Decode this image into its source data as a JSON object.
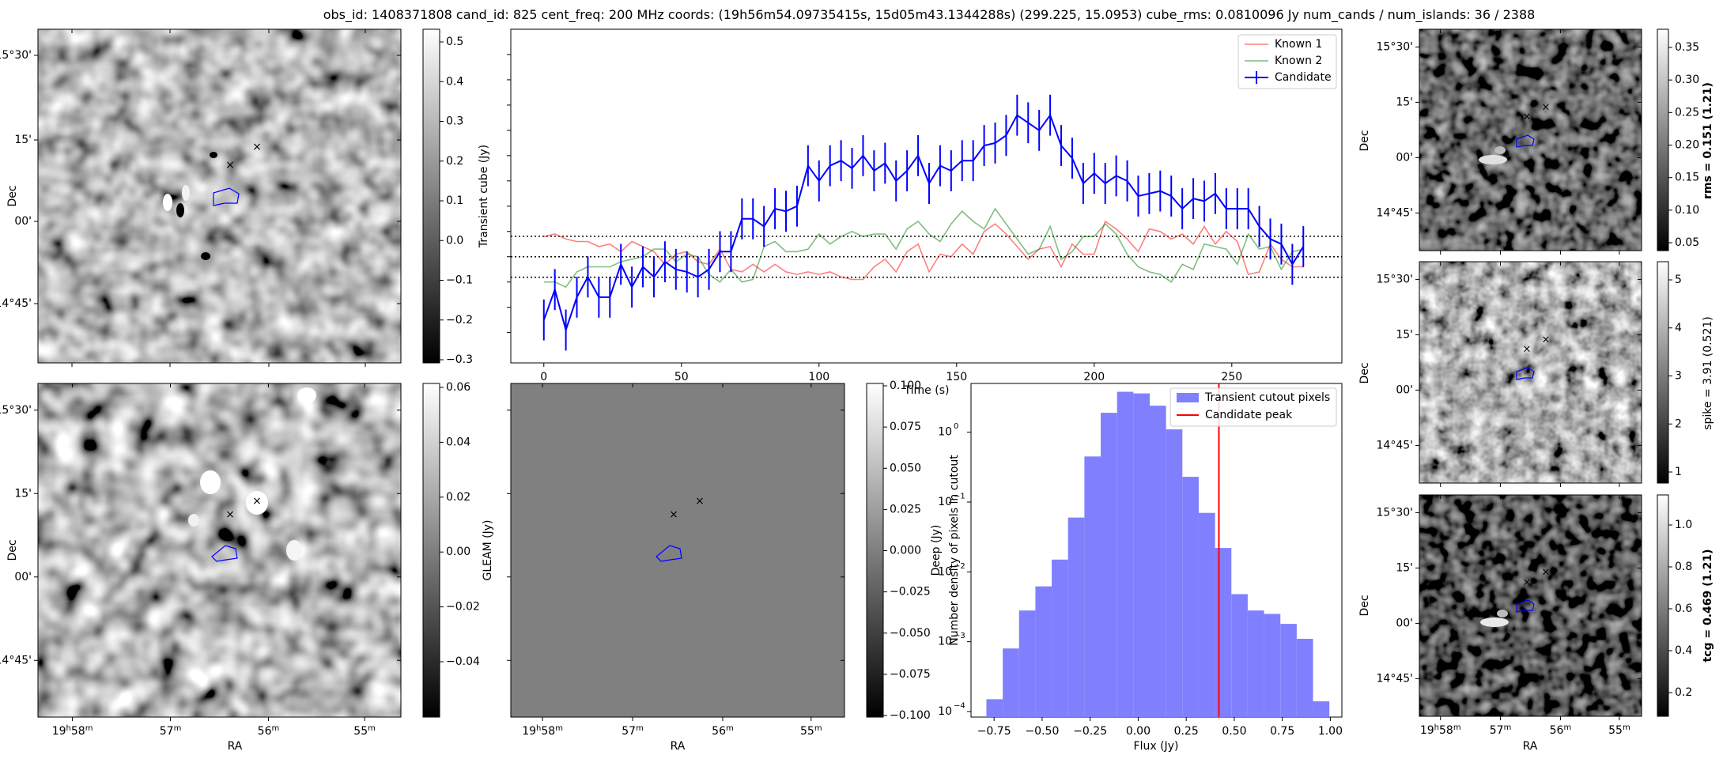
{
  "title": "obs_id: 1408371808 cand_id: 825 cent_freq: 200 MHz coords: (19h56m54.09735415s, 15d05m43.1344288s) (299.225, 15.0953) cube_rms: 0.0810096 Jy num_cands / num_islands: 36 / 2388",
  "sky_axes": {
    "dec_ticks": [
      "15°30'",
      "15'",
      "00'",
      "14°45'"
    ],
    "ra_ticks": [
      {
        "h": "19",
        "m": "58",
        "s": "m"
      },
      {
        "h": "",
        "m": "57",
        "s": "m"
      },
      {
        "h": "",
        "m": "56",
        "s": "m"
      },
      {
        "h": "",
        "m": "55",
        "s": "m"
      }
    ],
    "xlabel": "RA",
    "ylabel": "Dec"
  },
  "panels": {
    "transient": {
      "cbar_label": "Transient cube (Jy)",
      "cbar_ticks": [
        "0.5",
        "0.4",
        "0.3",
        "0.2",
        "0.1",
        "0.0",
        "−0.1",
        "−0.2",
        "−0.3"
      ],
      "colors": {
        "marker_green": "#008000",
        "marker_red": "#ff0000",
        "contour": "#0000ff"
      }
    },
    "deep": {
      "cbar_label": "Deep (Jy)",
      "cbar_ticks": [
        "0.06",
        "0.04",
        "0.02",
        "0.00",
        "−0.02",
        "−0.04"
      ]
    },
    "gleam": {
      "cbar_label": "GLEAM (Jy)",
      "cbar_ticks": [
        "0.100",
        "0.075",
        "0.050",
        "0.025",
        "0.000",
        "−0.025",
        "−0.050",
        "−0.075",
        "−0.100"
      ],
      "fill_color": "#808080"
    },
    "rms": {
      "cbar_label": "rms = 0.151 (1.21)",
      "cbar_ticks": [
        "0.35",
        "0.30",
        "0.25",
        "0.20",
        "0.15",
        "0.10",
        "0.05"
      ]
    },
    "spike": {
      "cbar_label": "spike = 3.91 (0.521)",
      "cbar_ticks": [
        "5",
        "4",
        "3",
        "2",
        "1"
      ]
    },
    "tcg": {
      "cbar_label": "tcg = 0.469 (1.21)",
      "cbar_ticks": [
        "1.0",
        "0.8",
        "0.6",
        "0.4",
        "0.2"
      ]
    }
  },
  "chart_data": [
    {
      "type": "line",
      "name": "lightcurve",
      "xlabel": "Time (s)",
      "ylabel": "",
      "xlim": [
        -12,
        290
      ],
      "ylim": [
        -0.42,
        0.9
      ],
      "x_ticks": [
        0,
        50,
        100,
        150,
        200,
        250
      ],
      "x_tick_labels": [
        "0",
        "50",
        "100",
        "150",
        "200",
        "250"
      ],
      "hlines": [
        -0.081,
        0.0,
        0.081
      ],
      "legend": [
        "Known 1",
        "Known 2",
        "Candidate"
      ],
      "legend_position": "top-right",
      "series": [
        {
          "name": "Known 1",
          "color": "#ff0000",
          "x": [
            0,
            4,
            8,
            12,
            16,
            20,
            24,
            28,
            32,
            36,
            40,
            44,
            48,
            52,
            56,
            60,
            64,
            68,
            72,
            76,
            80,
            84,
            88,
            92,
            96,
            100,
            104,
            108,
            112,
            116,
            120,
            124,
            128,
            132,
            136,
            140,
            144,
            148,
            152,
            156,
            160,
            164,
            168,
            172,
            176,
            180,
            184,
            188,
            192,
            196,
            200,
            204,
            208,
            212,
            216,
            220,
            224,
            228,
            232,
            236,
            240,
            244,
            248,
            252,
            256,
            260,
            264,
            268,
            272,
            276
          ],
          "y": [
            0.08,
            0.09,
            0.07,
            0.06,
            0.06,
            0.04,
            0.05,
            0.02,
            0.06,
            0.04,
            0.02,
            -0.03,
            0.01,
            0.02,
            -0.02,
            -0.03,
            0.03,
            -0.05,
            -0.06,
            -0.03,
            -0.06,
            -0.03,
            -0.06,
            -0.07,
            -0.06,
            -0.07,
            -0.06,
            -0.08,
            -0.09,
            -0.09,
            -0.04,
            -0.01,
            -0.06,
            0.02,
            0.05,
            -0.06,
            0.01,
            0.0,
            0.05,
            0.01,
            0.1,
            0.13,
            0.09,
            0.04,
            -0.01,
            0.03,
            0.04,
            -0.04,
            0.05,
            0.01,
            0.01,
            0.14,
            0.11,
            0.07,
            0.02,
            0.11,
            0.1,
            0.07,
            0.09,
            0.05,
            0.12,
            0.05,
            0.1,
            0.06,
            -0.07,
            -0.06,
            0.05,
            -0.01,
            -0.04,
            -0.04
          ]
        },
        {
          "name": "Known 2",
          "color": "#008000",
          "x": [
            0,
            4,
            8,
            12,
            16,
            20,
            24,
            28,
            32,
            36,
            40,
            44,
            48,
            52,
            56,
            60,
            64,
            68,
            72,
            76,
            80,
            84,
            88,
            92,
            96,
            100,
            104,
            108,
            112,
            116,
            120,
            124,
            128,
            132,
            136,
            140,
            144,
            148,
            152,
            156,
            160,
            164,
            168,
            172,
            176,
            180,
            184,
            188,
            192,
            196,
            200,
            204,
            208,
            212,
            216,
            220,
            224,
            228,
            232,
            236,
            240,
            244,
            248,
            252,
            256,
            260,
            264,
            268,
            272,
            276
          ],
          "y": [
            -0.1,
            -0.1,
            -0.12,
            -0.06,
            -0.04,
            -0.04,
            -0.04,
            -0.02,
            -0.01,
            0.0,
            0.03,
            0.03,
            -0.02,
            0.01,
            0.0,
            -0.07,
            -0.1,
            -0.05,
            -0.1,
            -0.09,
            0.04,
            0.06,
            0.02,
            0.02,
            0.03,
            0.09,
            0.05,
            0.08,
            0.1,
            0.08,
            0.09,
            0.09,
            0.03,
            0.11,
            0.14,
            0.09,
            0.06,
            0.13,
            0.18,
            0.14,
            0.11,
            0.19,
            0.13,
            0.07,
            0.01,
            0.03,
            0.12,
            -0.01,
            0.02,
            0.08,
            0.08,
            0.13,
            0.09,
            0.01,
            -0.04,
            -0.06,
            -0.07,
            -0.1,
            -0.03,
            -0.05,
            0.05,
            0.04,
            0.03,
            -0.03,
            0.09,
            0.03,
            0.04,
            -0.05,
            0.02,
            0.03
          ]
        },
        {
          "name": "Candidate",
          "color": "#0000ff",
          "yerr": 0.081,
          "x": [
            0,
            4,
            8,
            12,
            16,
            20,
            24,
            28,
            32,
            36,
            40,
            44,
            48,
            52,
            56,
            60,
            64,
            68,
            72,
            76,
            80,
            84,
            88,
            92,
            96,
            100,
            104,
            108,
            112,
            116,
            120,
            124,
            128,
            132,
            136,
            140,
            144,
            148,
            152,
            156,
            160,
            164,
            168,
            172,
            176,
            180,
            184,
            188,
            192,
            196,
            200,
            204,
            208,
            212,
            216,
            220,
            224,
            228,
            232,
            236,
            240,
            244,
            248,
            252,
            256,
            260,
            264,
            268,
            272,
            276
          ],
          "y": [
            -0.25,
            -0.13,
            -0.29,
            -0.16,
            -0.08,
            -0.16,
            -0.16,
            -0.03,
            -0.12,
            -0.04,
            -0.08,
            -0.02,
            -0.05,
            -0.06,
            -0.08,
            -0.05,
            0.02,
            0.02,
            0.15,
            0.15,
            0.12,
            0.19,
            0.18,
            0.2,
            0.36,
            0.3,
            0.36,
            0.38,
            0.35,
            0.4,
            0.34,
            0.37,
            0.3,
            0.34,
            0.4,
            0.29,
            0.36,
            0.34,
            0.38,
            0.38,
            0.44,
            0.45,
            0.48,
            0.56,
            0.53,
            0.5,
            0.56,
            0.44,
            0.39,
            0.29,
            0.33,
            0.29,
            0.32,
            0.3,
            0.24,
            0.25,
            0.26,
            0.24,
            0.19,
            0.23,
            0.22,
            0.25,
            0.19,
            0.19,
            0.19,
            0.12,
            0.07,
            0.05,
            -0.03,
            0.04
          ]
        }
      ]
    },
    {
      "type": "bar",
      "name": "histogram",
      "xlabel": "Flux (Jy)",
      "ylabel": "Number density of pixels in cutout",
      "yscale": "log",
      "xlim": [
        -0.87,
        1.06
      ],
      "ylim": [
        0.0001,
        5
      ],
      "x_ticks": [
        -0.75,
        -0.5,
        -0.25,
        0.0,
        0.25,
        0.5,
        0.75,
        1.0
      ],
      "x_tick_labels": [
        "−0.75",
        "−0.50",
        "−0.25",
        "0.00",
        "0.25",
        "0.50",
        "0.75",
        "1.00"
      ],
      "y_ticks": [
        0.0001,
        0.001,
        0.01,
        0.1,
        1
      ],
      "y_tick_labels": [
        "10",
        "10",
        "10",
        "10",
        "10"
      ],
      "y_tick_exps": [
        "−4",
        "−3",
        "−2",
        "−1",
        "0"
      ],
      "bin_edges": [
        -0.79,
        -0.705,
        -0.62,
        -0.535,
        -0.45,
        -0.365,
        -0.28,
        -0.195,
        -0.11,
        -0.025,
        0.06,
        0.145,
        0.23,
        0.315,
        0.4,
        0.485,
        0.57,
        0.655,
        0.74,
        0.825,
        0.91,
        0.995
      ],
      "values": [
        0.00015,
        0.0008,
        0.0028,
        0.0062,
        0.015,
        0.06,
        0.45,
        1.9,
        3.8,
        3.6,
        2.4,
        1.1,
        0.23,
        0.07,
        0.022,
        0.0048,
        0.0028,
        0.0025,
        0.0018,
        0.0011,
        0.00014
      ],
      "vline": 0.42,
      "legend": [
        "Transient cutout pixels",
        "Candidate peak"
      ],
      "legend_position": "top-right",
      "colors": {
        "bars": "#8080ff",
        "vline": "#ff0000"
      }
    }
  ]
}
